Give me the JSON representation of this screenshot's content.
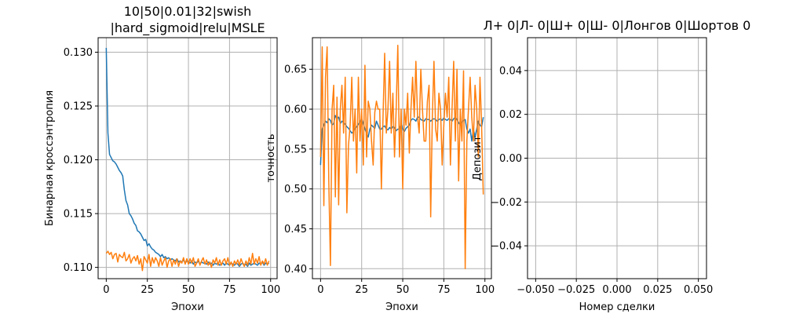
{
  "chart_data": [
    {
      "type": "line",
      "title": "10|50|0.01|32|swish\n|hard_sigmoid|relu|MSLE",
      "xlabel": "Эпохи",
      "ylabel": "Бинарная кроссэнтропия",
      "xlim": [
        -4.95,
        103.95
      ],
      "ylim": [
        0.10895,
        0.13135
      ],
      "xticks": [
        0,
        25,
        50,
        75,
        100
      ],
      "xtick_labels": [
        "0",
        "25",
        "50",
        "75",
        "100"
      ],
      "yticks": [
        0.11,
        0.115,
        0.12,
        0.125,
        0.13
      ],
      "ytick_labels": [
        "0.110",
        "0.115",
        "0.120",
        "0.125",
        "0.130"
      ],
      "grid": true,
      "series": [
        {
          "color": "#1f77b4",
          "x_start": 0,
          "values": [
            0.1304,
            0.1225,
            0.1205,
            0.1202,
            0.1199,
            0.1198,
            0.1196,
            0.1193,
            0.119,
            0.1188,
            0.1185,
            0.1172,
            0.1162,
            0.1158,
            0.115,
            0.1148,
            0.1145,
            0.1141,
            0.1139,
            0.1134,
            0.1133,
            0.1131,
            0.1128,
            0.1125,
            0.1126,
            0.112,
            0.1122,
            0.1119,
            0.1117,
            0.1116,
            0.1114,
            0.1113,
            0.1112,
            0.111,
            0.1112,
            0.1109,
            0.111,
            0.1108,
            0.1109,
            0.1107,
            0.1108,
            0.1107,
            0.1106,
            0.1108,
            0.1105,
            0.1106,
            0.1105,
            0.1107,
            0.1104,
            0.1106,
            0.1105,
            0.1104,
            0.1106,
            0.1103,
            0.1105,
            0.1104,
            0.1106,
            0.1103,
            0.1105,
            0.1104,
            0.1104,
            0.1103,
            0.1105,
            0.1103,
            0.1104,
            0.1102,
            0.1104,
            0.1103,
            0.1104,
            0.1102,
            0.1103,
            0.1104,
            0.1102,
            0.1104,
            0.1103,
            0.1102,
            0.1104,
            0.1103,
            0.1102,
            0.1104,
            0.1103,
            0.1101,
            0.1103,
            0.1104,
            0.1102,
            0.1103,
            0.1101,
            0.1104,
            0.1102,
            0.1103,
            0.1104,
            0.1103,
            0.1102,
            0.1104,
            0.1103,
            0.1105,
            0.1102,
            0.1104,
            0.1103,
            0.1104
          ]
        },
        {
          "color": "#ff7f0e",
          "x_start": 0,
          "values": [
            0.1113,
            0.1115,
            0.1112,
            0.1114,
            0.1108,
            0.1112,
            0.1113,
            0.1105,
            0.1112,
            0.111,
            0.1109,
            0.1114,
            0.1106,
            0.1108,
            0.1112,
            0.1104,
            0.1108,
            0.111,
            0.1106,
            0.1111,
            0.1103,
            0.1108,
            0.1097,
            0.111,
            0.1107,
            0.1104,
            0.1112,
            0.1101,
            0.1109,
            0.1104,
            0.1109,
            0.1106,
            0.1101,
            0.1109,
            0.1102,
            0.1106,
            0.1109,
            0.11,
            0.1106,
            0.1108,
            0.1101,
            0.1107,
            0.1103,
            0.1108,
            0.1101,
            0.1106,
            0.1104,
            0.1109,
            0.1103,
            0.1108,
            0.1103,
            0.1108,
            0.1104,
            0.1109,
            0.1101,
            0.1104,
            0.1108,
            0.1102,
            0.1106,
            0.1109,
            0.1103,
            0.1107,
            0.1102,
            0.1105,
            0.11,
            0.1107,
            0.1104,
            0.1109,
            0.1102,
            0.1107,
            0.1102,
            0.1106,
            0.1108,
            0.1103,
            0.1109,
            0.1102,
            0.1105,
            0.1101,
            0.1106,
            0.1103,
            0.1107,
            0.1102,
            0.1108,
            0.1104,
            0.1101,
            0.1106,
            0.1102,
            0.1109,
            0.1103,
            0.1113,
            0.1103,
            0.1108,
            0.1104,
            0.111,
            0.1102,
            0.1106,
            0.1103,
            0.1108,
            0.1102,
            0.1106
          ]
        }
      ]
    },
    {
      "type": "line",
      "title": "",
      "xlabel": "Эпохи",
      "ylabel": "точность",
      "xlim": [
        -4.95,
        103.95
      ],
      "ylim": [
        0.3875,
        0.6896
      ],
      "xticks": [
        0,
        25,
        50,
        75,
        100
      ],
      "xtick_labels": [
        "0",
        "25",
        "50",
        "75",
        "100"
      ],
      "yticks": [
        0.4,
        0.45,
        0.5,
        0.55,
        0.6,
        0.65
      ],
      "ytick_labels": [
        "0.40",
        "0.45",
        "0.50",
        "0.55",
        "0.60",
        "0.65"
      ],
      "grid": true,
      "series": [
        {
          "color": "#1f77b4",
          "x_start": 0,
          "values": [
            0.53,
            0.575,
            0.58,
            0.585,
            0.583,
            0.588,
            0.586,
            0.58,
            0.582,
            0.592,
            0.588,
            0.59,
            0.582,
            0.585,
            0.583,
            0.581,
            0.578,
            0.576,
            0.573,
            0.57,
            0.572,
            0.576,
            0.578,
            0.581,
            0.584,
            0.588,
            0.582,
            0.575,
            0.57,
            0.565,
            0.575,
            0.58,
            0.578,
            0.576,
            0.585,
            0.58,
            0.575,
            0.575,
            0.578,
            0.579,
            0.575,
            0.574,
            0.577,
            0.575,
            0.578,
            0.577,
            0.573,
            0.575,
            0.575,
            0.582,
            0.575,
            0.572,
            0.576,
            0.578,
            0.58,
            0.586,
            0.588,
            0.587,
            0.585,
            0.59,
            0.59,
            0.587,
            0.586,
            0.585,
            0.588,
            0.587,
            0.587,
            0.585,
            0.587,
            0.588,
            0.587,
            0.585,
            0.587,
            0.588,
            0.586,
            0.589,
            0.587,
            0.586,
            0.588,
            0.587,
            0.585,
            0.588,
            0.59,
            0.587,
            0.583,
            0.58,
            0.584,
            0.586,
            0.587,
            0.575,
            0.57,
            0.575,
            0.56,
            0.575,
            0.565,
            0.575,
            0.585,
            0.58,
            0.578,
            0.59
          ]
        },
        {
          "color": "#ff7f0e",
          "x_start": 0,
          "values": [
            0.54,
            0.678,
            0.479,
            0.64,
            0.678,
            0.51,
            0.404,
            0.6,
            0.63,
            0.49,
            0.615,
            0.48,
            0.6,
            0.63,
            0.57,
            0.64,
            0.47,
            0.555,
            0.58,
            0.64,
            0.56,
            0.6,
            0.52,
            0.64,
            0.56,
            0.6,
            0.53,
            0.655,
            0.54,
            0.61,
            0.6,
            0.56,
            0.53,
            0.596,
            0.61,
            0.6,
            0.6,
            0.5,
            0.59,
            0.67,
            0.57,
            0.6,
            0.66,
            0.57,
            0.62,
            0.54,
            0.6,
            0.68,
            0.54,
            0.6,
            0.5,
            0.6,
            0.58,
            0.62,
            0.545,
            0.6,
            0.64,
            0.59,
            0.66,
            0.59,
            0.57,
            0.65,
            0.6,
            0.56,
            0.56,
            0.61,
            0.63,
            0.465,
            0.59,
            0.66,
            0.575,
            0.56,
            0.62,
            0.6,
            0.53,
            0.58,
            0.62,
            0.59,
            0.64,
            0.53,
            0.6,
            0.66,
            0.56,
            0.65,
            0.51,
            0.6,
            0.56,
            0.648,
            0.4,
            0.56,
            0.6,
            0.64,
            0.59,
            0.56,
            0.63,
            0.6,
            0.54,
            0.64,
            0.578,
            0.493
          ]
        }
      ]
    },
    {
      "type": "line",
      "title": "Л+ 0|Л- 0|Ш+ 0|Ш- 0|Лонгов 0|Шортов 0",
      "xlabel": "Номер сделки",
      "ylabel": "Депозит",
      "xlim": [
        -0.055,
        0.055
      ],
      "ylim": [
        -0.055,
        0.055
      ],
      "xticks": [
        -0.05,
        -0.025,
        0.0,
        0.025,
        0.05
      ],
      "xtick_labels": [
        "−0.050",
        "−0.025",
        "0.000",
        "0.025",
        "0.050"
      ],
      "yticks": [
        -0.04,
        -0.02,
        0.0,
        0.02,
        0.04
      ],
      "ytick_labels": [
        "−0.04",
        "−0.02",
        "0.00",
        "0.02",
        "0.04"
      ],
      "grid": true,
      "series": []
    }
  ]
}
